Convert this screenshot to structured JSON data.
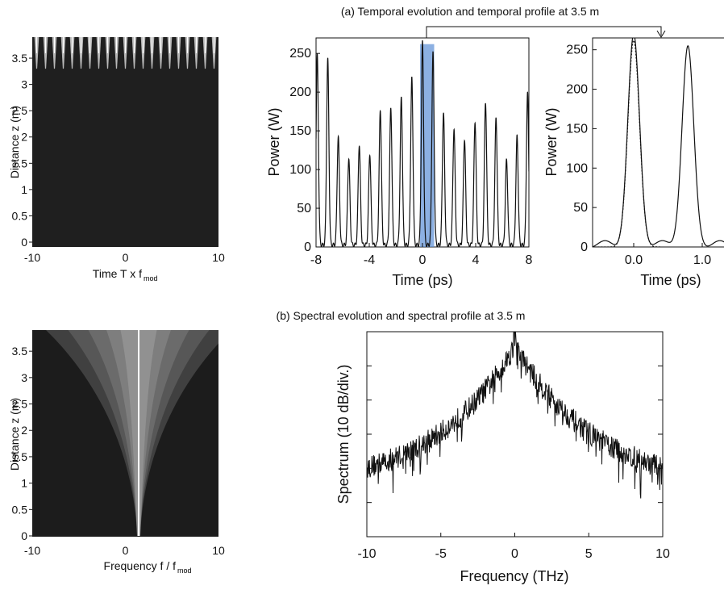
{
  "figure": {
    "title_a": "(a) Temporal evolution and temporal profile at 3.5 m",
    "title_b": "(b) Spectral evolution and spectral profile at 3.5 m"
  },
  "chart_data": [
    {
      "id": "temporal-evolution-map",
      "type": "heatmap",
      "xlabel": "Time T x f",
      "xlabel_sub": "mod",
      "ylabel": "Distance z (m)",
      "xlim": [
        -10,
        10
      ],
      "ylim": [
        0,
        3.9
      ],
      "xticks": [
        "-10",
        "0",
        "10"
      ],
      "yticks": [
        "0",
        "0.5",
        "1",
        "1.5",
        "2",
        "2.5",
        "3",
        "3.5"
      ],
      "stripes": {
        "count": 21,
        "onset_z": 3.3,
        "colormap": "gray"
      }
    },
    {
      "id": "temporal-profile",
      "type": "line",
      "xlabel": "Time (ps)",
      "ylabel": "Power (W)",
      "xlim": [
        -8,
        8
      ],
      "ylim": [
        0,
        270
      ],
      "xticks": [
        "-8",
        "-4",
        "0",
        "4",
        "8"
      ],
      "yticks": [
        "0",
        "50",
        "100",
        "150",
        "200",
        "250"
      ],
      "highlight": {
        "x0": 0,
        "x1": 0.7,
        "color": "#5b8fd6"
      },
      "series": [
        {
          "peaks_x": [
            -7.91,
            -7.12,
            -6.33,
            -5.54,
            -4.75,
            -3.96,
            -3.17,
            -2.38,
            -1.59,
            -0.8,
            0.0,
            0.79,
            1.58,
            2.37,
            3.16,
            3.95,
            4.74,
            5.53,
            6.32,
            7.11,
            7.9
          ],
          "peaks_y": [
            245,
            240,
            140,
            112,
            130,
            118,
            175,
            177,
            190,
            215,
            262,
            248,
            170,
            150,
            137,
            160,
            185,
            165,
            110,
            140,
            195
          ]
        }
      ]
    },
    {
      "id": "temporal-profile-zoom",
      "type": "line",
      "xlabel": "Time (ps)",
      "ylabel": "Power (W)",
      "xlim": [
        -0.6,
        1.4
      ],
      "ylim": [
        0,
        265
      ],
      "xticks": [
        "0.0",
        "1.0"
      ],
      "yticks": [
        "0",
        "50",
        "100",
        "150",
        "200",
        "250"
      ],
      "series": [
        {
          "style": "solid",
          "peaks_x": [
            0.0,
            0.79
          ],
          "peaks_y": [
            262,
            248
          ]
        },
        {
          "style": "dotted",
          "peaks_x": [
            0.0
          ],
          "peaks_y": [
            262
          ]
        }
      ]
    },
    {
      "id": "spectral-evolution-map",
      "type": "heatmap",
      "xlabel": "Frequency f / f",
      "xlabel_sub": "mod",
      "ylabel": "Distance z (m)",
      "xlim": [
        -10,
        10
      ],
      "ylim": [
        0,
        3.9
      ],
      "xticks": [
        "-10",
        "0",
        "10"
      ],
      "yticks": [
        "0",
        "0.5",
        "1",
        "1.5",
        "2",
        "2.5",
        "3",
        "3.5"
      ],
      "colormap": "gray"
    },
    {
      "id": "spectral-profile",
      "type": "line",
      "xlabel": "Frequency (THz)",
      "ylabel": "Spectrum (10 dB/div.)",
      "xlim": [
        -10,
        10
      ],
      "xticks": [
        "-10",
        "-5",
        "0",
        "5",
        "10"
      ],
      "envelope": {
        "peak_x": 0,
        "peak_level": 0.93,
        "edge_level": 0.22,
        "spread": 0.07
      }
    }
  ]
}
